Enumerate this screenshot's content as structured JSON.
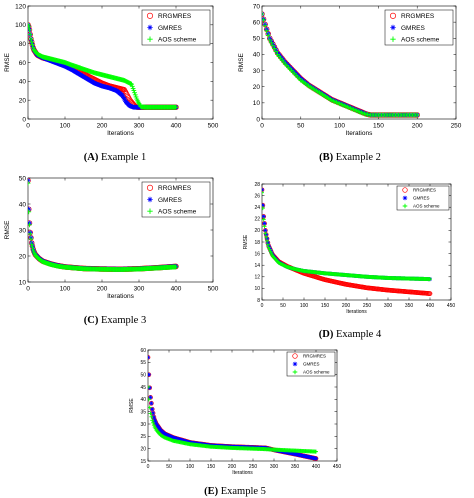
{
  "chart_data": [
    {
      "type": "line",
      "caption_letter": "(A)",
      "caption_text": "Example 1",
      "xlabel": "Iterations",
      "ylabel": "RMSE",
      "xlim": [
        0,
        500
      ],
      "ylim": [
        0,
        120
      ],
      "xticks": [
        0,
        100,
        200,
        300,
        400,
        500
      ],
      "yticks": [
        0,
        20,
        40,
        60,
        80,
        100,
        120
      ],
      "legend_position": "top-right",
      "series": [
        {
          "name": "RRGMRES",
          "marker": "circle",
          "color": "#ff0000",
          "x": [
            0,
            3,
            8,
            15,
            25,
            40,
            60,
            80,
            100,
            120,
            150,
            180,
            200,
            220,
            240,
            260,
            275,
            290,
            300,
            320,
            350,
            380,
            400
          ],
          "y": [
            100,
            97,
            85,
            74,
            68,
            65,
            63,
            60,
            57,
            54,
            48,
            42,
            38,
            35,
            33,
            31,
            20,
            13,
            12.5,
            12.5,
            12.5,
            12.5,
            12.5
          ]
        },
        {
          "name": "GMRES",
          "marker": "star",
          "color": "#0000ff",
          "x": [
            0,
            3,
            8,
            15,
            25,
            40,
            60,
            80,
            100,
            120,
            150,
            180,
            200,
            220,
            240,
            255,
            265,
            275,
            285,
            300,
            320,
            350,
            380,
            400
          ],
          "y": [
            100,
            97,
            85,
            74,
            68,
            65,
            62,
            59,
            56,
            52,
            45,
            38,
            35,
            33,
            30,
            25,
            18,
            14,
            12.5,
            12.5,
            12.5,
            12.5,
            12.5,
            12.5
          ]
        },
        {
          "name": "AOS scheme",
          "marker": "plus",
          "color": "#00ff00",
          "x": [
            0,
            3,
            8,
            15,
            25,
            40,
            60,
            80,
            100,
            120,
            150,
            180,
            200,
            220,
            240,
            260,
            280,
            295,
            305,
            320,
            350,
            380,
            400
          ],
          "y": [
            100,
            97,
            85,
            74,
            69,
            66,
            64,
            62,
            60,
            57,
            53,
            49,
            47,
            45,
            43,
            41,
            37,
            20,
            13,
            12.5,
            12.5,
            12.5,
            12.5
          ]
        }
      ]
    },
    {
      "type": "line",
      "caption_letter": "(B)",
      "caption_text": "Example 2",
      "xlabel": "Iterations",
      "ylabel": "RMSE",
      "xlim": [
        0,
        250
      ],
      "ylim": [
        0,
        70
      ],
      "xticks": [
        0,
        50,
        100,
        150,
        200,
        250
      ],
      "yticks": [
        0,
        10,
        20,
        30,
        40,
        50,
        60,
        70
      ],
      "legend_position": "top-right",
      "series": [
        {
          "name": "RRGMRES",
          "marker": "circle",
          "color": "#ff0000",
          "x": [
            0,
            5,
            10,
            20,
            30,
            40,
            50,
            60,
            70,
            80,
            90,
            100,
            110,
            120,
            130,
            135,
            140,
            160,
            180,
            200
          ],
          "y": [
            65,
            57,
            50,
            41,
            35,
            30,
            25,
            21,
            18,
            15,
            12,
            10,
            8,
            6,
            4,
            3,
            2.5,
            2.5,
            2.5,
            2.5
          ]
        },
        {
          "name": "GMRES",
          "marker": "star",
          "color": "#0000ff",
          "x": [
            0,
            5,
            10,
            20,
            30,
            40,
            50,
            60,
            70,
            80,
            90,
            100,
            110,
            120,
            130,
            135,
            140,
            160,
            180,
            200
          ],
          "y": [
            65,
            57,
            50,
            41,
            35,
            30,
            25,
            21,
            18,
            15,
            12,
            10,
            8,
            6,
            4,
            3,
            2.5,
            2.5,
            2.5,
            2.5
          ]
        },
        {
          "name": "AOS scheme",
          "marker": "plus",
          "color": "#00ff00",
          "x": [
            0,
            5,
            10,
            20,
            30,
            40,
            50,
            60,
            70,
            80,
            90,
            100,
            110,
            120,
            130,
            135,
            140,
            160,
            180,
            200
          ],
          "y": [
            65,
            56,
            49,
            40,
            34,
            29,
            24,
            20.5,
            17.5,
            14.5,
            11.5,
            9.5,
            7.5,
            5.5,
            3.5,
            2.8,
            2.5,
            2.5,
            2.5,
            2.5
          ]
        }
      ]
    },
    {
      "type": "line",
      "caption_letter": "(C)",
      "caption_text": "Example 3",
      "xlabel": "Iterations",
      "ylabel": "RMSE",
      "xlim": [
        0,
        500
      ],
      "ylim": [
        10,
        50
      ],
      "xticks": [
        0,
        100,
        200,
        300,
        400,
        500
      ],
      "yticks": [
        10,
        20,
        30,
        40,
        50
      ],
      "legend_position": "top-right",
      "series": [
        {
          "name": "RRGMRES",
          "marker": "circle",
          "color": "#ff0000",
          "x": [
            0,
            2,
            5,
            10,
            15,
            20,
            30,
            40,
            60,
            80,
            100,
            150,
            200,
            250,
            300,
            350,
            400
          ],
          "y": [
            49,
            38,
            30,
            25,
            22,
            20.5,
            19,
            18,
            17,
            16.3,
            15.8,
            15.2,
            15,
            14.9,
            15.1,
            15.5,
            16
          ]
        },
        {
          "name": "GMRES",
          "marker": "star",
          "color": "#0000ff",
          "x": [
            0,
            2,
            5,
            10,
            15,
            20,
            30,
            40,
            60,
            80,
            100,
            150,
            200,
            250,
            300,
            350,
            400
          ],
          "y": [
            49,
            38,
            30,
            25,
            22,
            20.5,
            19,
            18,
            17,
            16.3,
            15.8,
            15.2,
            15,
            14.9,
            15.1,
            15.5,
            16
          ]
        },
        {
          "name": "AOS scheme",
          "marker": "plus",
          "color": "#00ff00",
          "x": [
            0,
            2,
            5,
            10,
            15,
            20,
            30,
            40,
            60,
            80,
            100,
            150,
            200,
            250,
            300,
            350,
            400
          ],
          "y": [
            48,
            37,
            29.5,
            24.5,
            21.8,
            20.3,
            18.8,
            17.8,
            16.8,
            16.1,
            15.7,
            15.1,
            14.9,
            14.8,
            15,
            15.4,
            15.8
          ]
        }
      ]
    },
    {
      "type": "line",
      "caption_letter": "(D)",
      "caption_text": "Example 4",
      "xlabel": "Iterations",
      "ylabel": "RMSE",
      "xlim": [
        0,
        450
      ],
      "ylim": [
        8,
        28
      ],
      "xticks": [
        0,
        50,
        100,
        150,
        200,
        250,
        300,
        350,
        400,
        450
      ],
      "yticks": [
        8,
        10,
        12,
        14,
        16,
        18,
        20,
        22,
        24,
        26,
        28
      ],
      "legend_position": "top-right",
      "series": [
        {
          "name": "RRGMRES",
          "marker": "circle",
          "color": "#ff0000",
          "x": [
            0,
            3,
            8,
            15,
            25,
            40,
            60,
            80,
            100,
            150,
            200,
            250,
            300,
            350,
            400
          ],
          "y": [
            27,
            23,
            20,
            17.5,
            15.8,
            14.6,
            13.8,
            13.2,
            12.6,
            11.5,
            10.7,
            10.1,
            9.7,
            9.4,
            9.1
          ]
        },
        {
          "name": "GMRES",
          "marker": "star",
          "color": "#0000ff",
          "x": [
            0,
            3,
            8,
            15,
            25,
            40,
            60,
            80,
            100,
            150,
            200,
            250,
            300,
            350,
            400
          ],
          "y": [
            27,
            23,
            20,
            17.5,
            15.8,
            14.5,
            13.7,
            13.3,
            13,
            12.6,
            12.3,
            12,
            11.8,
            11.7,
            11.6
          ]
        },
        {
          "name": "AOS scheme",
          "marker": "plus",
          "color": "#00ff00",
          "x": [
            0,
            3,
            8,
            15,
            25,
            40,
            60,
            80,
            100,
            150,
            200,
            250,
            300,
            350,
            400
          ],
          "y": [
            26.5,
            22.5,
            19.5,
            17.2,
            15.6,
            14.4,
            13.7,
            13.3,
            13,
            12.6,
            12.3,
            12,
            11.8,
            11.7,
            11.6
          ]
        }
      ]
    },
    {
      "type": "line",
      "caption_letter": "(E)",
      "caption_text": "Example 5",
      "xlabel": "Iterations",
      "ylabel": "RMSE",
      "xlim": [
        0,
        450
      ],
      "ylim": [
        15,
        60
      ],
      "xticks": [
        0,
        50,
        100,
        150,
        200,
        250,
        300,
        350,
        400,
        450
      ],
      "yticks": [
        15,
        20,
        25,
        30,
        35,
        40,
        45,
        50,
        55,
        60
      ],
      "legend_position": "top-right",
      "series": [
        {
          "name": "RRGMRES",
          "marker": "circle",
          "color": "#ff0000",
          "x": [
            0,
            2,
            5,
            10,
            15,
            20,
            30,
            40,
            60,
            80,
            100,
            150,
            200,
            250,
            280,
            300,
            350,
            400
          ],
          "y": [
            57,
            50,
            42,
            36,
            32,
            30,
            27.5,
            26,
            24.5,
            23.5,
            22.5,
            21.3,
            20.8,
            20.5,
            20.3,
            19.5,
            17.8,
            16
          ]
        },
        {
          "name": "GMRES",
          "marker": "star",
          "color": "#0000ff",
          "x": [
            0,
            2,
            5,
            10,
            15,
            20,
            30,
            40,
            60,
            80,
            100,
            150,
            200,
            250,
            280,
            300,
            350,
            400
          ],
          "y": [
            57,
            50,
            42,
            36,
            32,
            30,
            27.5,
            26,
            24.5,
            23.5,
            22.5,
            21.3,
            20.8,
            20.5,
            20.3,
            19.5,
            17.8,
            16
          ]
        },
        {
          "name": "AOS scheme",
          "marker": "plus",
          "color": "#00ff00",
          "x": [
            0,
            2,
            5,
            10,
            15,
            20,
            30,
            40,
            60,
            80,
            100,
            150,
            200,
            250,
            280,
            300,
            350,
            400
          ],
          "y": [
            45,
            40,
            35,
            31.5,
            29,
            27.5,
            25.5,
            24.5,
            23.2,
            22.5,
            21.8,
            20.8,
            20.3,
            20,
            19.8,
            19.6,
            19.2,
            18.8
          ]
        }
      ]
    }
  ]
}
